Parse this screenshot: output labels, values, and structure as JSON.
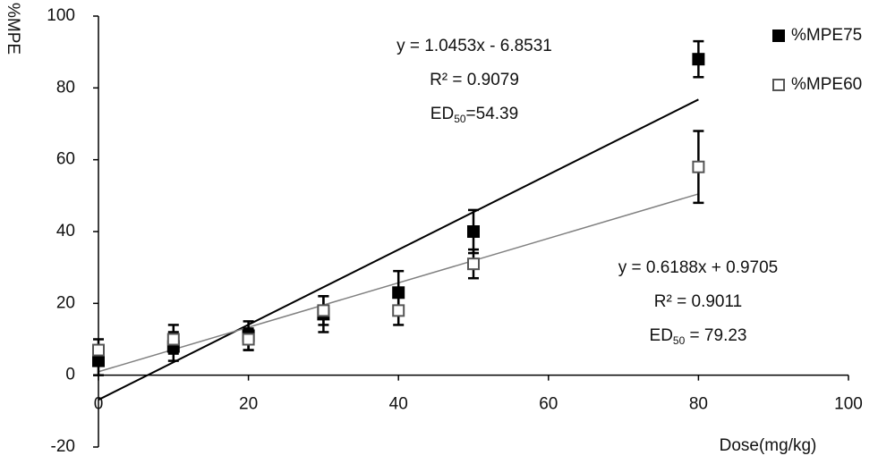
{
  "chart_data": {
    "type": "scatter",
    "y_label": "%MPE",
    "x_label": "Dose(mg/kg)",
    "x": [
      0,
      10,
      20,
      30,
      40,
      50,
      80
    ],
    "xlim": [
      0,
      100
    ],
    "xticks": [
      0,
      20,
      40,
      60,
      80,
      100
    ],
    "ylim": [
      -20,
      100
    ],
    "yticks": [
      -20,
      0,
      20,
      40,
      60,
      80,
      100
    ],
    "series": [
      {
        "name": "%MPE75",
        "color": "#000000",
        "marker": "filled",
        "values": [
          4,
          8,
          11,
          17,
          23,
          40,
          88
        ],
        "errors": [
          4,
          4,
          4,
          5,
          6,
          6,
          5
        ],
        "trendline": {
          "color": "#000000",
          "slope": 1.0453,
          "intercept": -6.8531,
          "equation": "y = 1.0453x - 6.8531",
          "r2": "R² = 0.9079",
          "ed_label": "ED",
          "ed_sub": "50",
          "ed_value": "=54.39"
        }
      },
      {
        "name": "%MPE60",
        "color": "#555555",
        "marker": "open",
        "values": [
          7,
          10,
          10,
          18,
          18,
          31,
          58
        ],
        "errors": [
          3,
          4,
          3,
          4,
          4,
          4,
          10
        ],
        "trendline": {
          "color": "#808080",
          "slope": 0.6188,
          "intercept": 0.9705,
          "equation": "y = 0.6188x + 0.9705",
          "r2": "R² = 0.9011",
          "ed_label": "ED",
          "ed_sub": "50",
          "ed_value": " = 79.23"
        }
      }
    ],
    "legend": "top-right"
  }
}
